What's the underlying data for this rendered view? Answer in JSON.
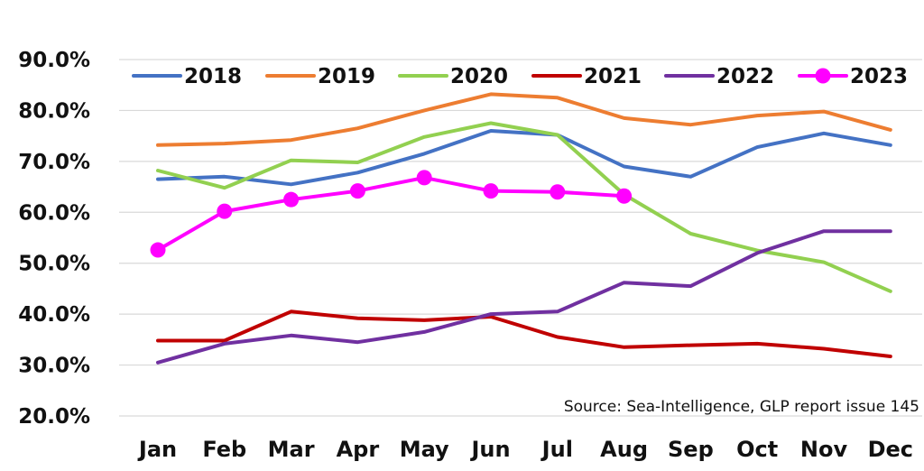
{
  "chart_data": {
    "type": "line",
    "categories": [
      "Jan",
      "Feb",
      "Mar",
      "Apr",
      "May",
      "Jun",
      "Jul",
      "Aug",
      "Sep",
      "Oct",
      "Nov",
      "Dec"
    ],
    "ylim": [
      20,
      90
    ],
    "y_ticks": [
      "20.0%",
      "30.0%",
      "40.0%",
      "50.0%",
      "60.0%",
      "70.0%",
      "80.0%",
      "90.0%"
    ],
    "y_tick_values": [
      20,
      30,
      40,
      50,
      60,
      70,
      80,
      90
    ],
    "grid": "horizontal",
    "legend_position": "top",
    "annotation": "Source: Sea-Intelligence, GLP report issue 145",
    "series": [
      {
        "name": "2018",
        "color": "#4472C4",
        "marker": "none",
        "values": [
          66.5,
          67.0,
          65.5,
          67.8,
          71.5,
          76.0,
          75.2,
          69.0,
          67.0,
          72.8,
          75.5,
          73.2
        ]
      },
      {
        "name": "2019",
        "color": "#ED7D31",
        "marker": "none",
        "values": [
          73.2,
          73.5,
          74.2,
          76.5,
          80.0,
          83.2,
          82.5,
          78.5,
          77.2,
          79.0,
          79.8,
          76.2
        ]
      },
      {
        "name": "2020",
        "color": "#92D050",
        "marker": "none",
        "values": [
          68.2,
          64.8,
          70.2,
          69.8,
          74.8,
          77.5,
          75.2,
          63.5,
          55.8,
          52.5,
          50.2,
          44.5
        ]
      },
      {
        "name": "2021",
        "color": "#C00000",
        "marker": "none",
        "values": [
          34.8,
          34.8,
          40.5,
          39.2,
          38.8,
          39.5,
          35.5,
          33.5,
          33.9,
          34.2,
          33.2,
          31.7
        ]
      },
      {
        "name": "2022",
        "color": "#7030A0",
        "marker": "none",
        "values": [
          30.5,
          34.2,
          35.8,
          34.5,
          36.5,
          40.0,
          40.5,
          46.2,
          45.5,
          52.0,
          56.3,
          56.3
        ]
      },
      {
        "name": "2023",
        "color": "#FF00FF",
        "marker": "circle",
        "values": [
          52.6,
          60.2,
          62.5,
          64.2,
          66.8,
          64.2,
          64.0,
          63.2,
          null,
          null,
          null,
          null
        ]
      }
    ]
  }
}
